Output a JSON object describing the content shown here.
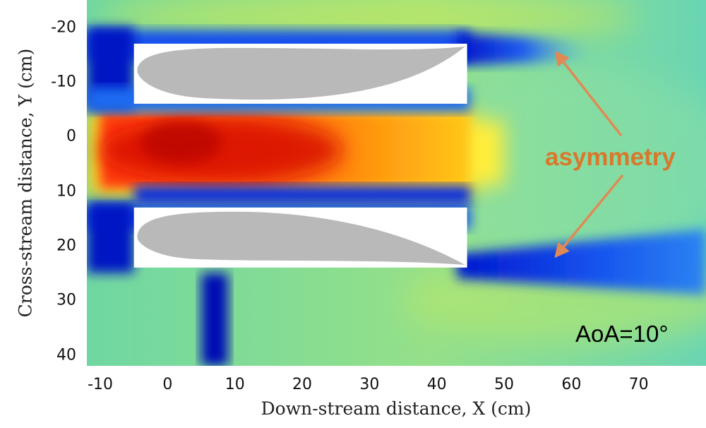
{
  "chart_data": {
    "type": "heatmap",
    "title": "",
    "xlabel": "Down-stream distance, X (cm)",
    "ylabel": "Cross-stream distance, Y (cm)",
    "xlim": [
      -12,
      80
    ],
    "ylim": [
      -25,
      42
    ],
    "y_inverted": true,
    "x_ticks": [
      "-10",
      "0",
      "10",
      "20",
      "30",
      "40",
      "50",
      "60",
      "70"
    ],
    "y_ticks": [
      "-20",
      "-10",
      "0",
      "10",
      "20",
      "30",
      "40"
    ],
    "x_tick_values": [
      -10,
      0,
      10,
      20,
      30,
      40,
      50,
      60,
      70
    ],
    "y_tick_values": [
      -20,
      -10,
      0,
      10,
      20,
      30,
      40
    ],
    "colormap": "jet",
    "annotations": [
      {
        "text": "asymmetry",
        "color": "#d9772b"
      },
      {
        "text": "AoA=10°",
        "color": "#000000"
      }
    ],
    "field": {
      "background_level": 0.45,
      "jet_core": {
        "x_range": [
          -10,
          45
        ],
        "y_range": [
          -5,
          10
        ],
        "level_peak": 0.98
      },
      "low_velocity_regions": [
        {
          "name": "upper-wake",
          "x_range": [
            42,
            62
          ],
          "y_center": -16,
          "level": 0.14
        },
        {
          "name": "lower-wake",
          "x_range": [
            42,
            80
          ],
          "y_center": 24,
          "level": 0.16
        },
        {
          "name": "support-rod",
          "x_range": [
            5,
            9
          ],
          "y_range": [
            25,
            42
          ],
          "level": 0.08
        }
      ]
    },
    "airfoils": [
      {
        "name": "upper-airfoil",
        "box_x": [
          -5,
          44.5
        ],
        "box_y": [
          -17,
          -6
        ],
        "leading_edge_y": -12,
        "trailing_edge_y": -16.5
      },
      {
        "name": "lower-airfoil",
        "box_x": [
          -5,
          44.5
        ],
        "box_y": [
          13,
          24
        ],
        "leading_edge_y": 18.5,
        "trailing_edge_y": 23.5
      }
    ]
  },
  "colors": {
    "airfoil_fill": "#b9b9b9",
    "airfoil_box": "#ffffff",
    "annotation": "#d9772b",
    "arrow": "#df8a55"
  }
}
